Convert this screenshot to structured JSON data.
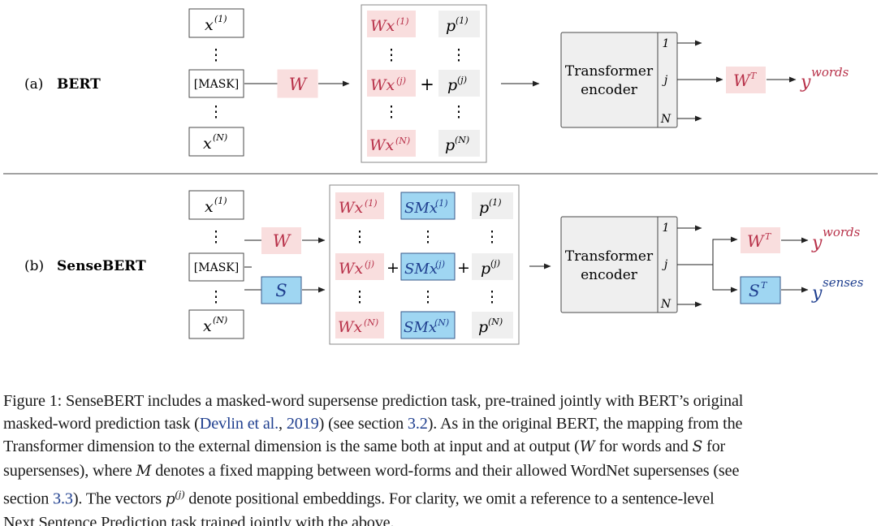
{
  "colors": {
    "word_fill": "#f9dede",
    "word_text": "#b8324a",
    "sense_fill": "#9fd6f2",
    "sense_text": "#1f3f8f",
    "pos_fill": "#efefef",
    "box_stroke": "#4a4a4a",
    "cite": "#1f3f8f"
  },
  "panel_a": {
    "tag": "(a)",
    "name": "BERT",
    "input_first": "x",
    "input_first_sup": "(1)",
    "input_mask": "[MASK]",
    "input_last": "x",
    "input_last_sup": "(N)",
    "W": "W",
    "embed": [
      {
        "word": "Wx",
        "word_sup": "(1)",
        "pos": "p",
        "pos_sup": "(1)"
      },
      {
        "word": "Wx",
        "word_sup": "(j)",
        "pos": "p",
        "pos_sup": "(j)"
      },
      {
        "word": "Wx",
        "word_sup": "(N)",
        "pos": "p",
        "pos_sup": "(N)"
      }
    ],
    "plus": "+",
    "encoder_line1": "Transformer",
    "encoder_line2": "encoder",
    "ports": [
      "1",
      "j",
      "N"
    ],
    "out_matrix": "W",
    "out_matrix_sup": "T",
    "out_label": "y",
    "out_label_sup": "words"
  },
  "panel_b": {
    "tag": "(b)",
    "name": "SenseBERT",
    "input_first": "x",
    "input_first_sup": "(1)",
    "input_mask": "[MASK]",
    "input_last": "x",
    "input_last_sup": "(N)",
    "W": "W",
    "S": "S",
    "embed": [
      {
        "word": "Wx",
        "word_sup": "(1)",
        "sense": "SMx",
        "sense_sup": "(1)",
        "pos": "p",
        "pos_sup": "(1)"
      },
      {
        "word": "Wx",
        "word_sup": "(j)",
        "sense": "SMx",
        "sense_sup": "(j)",
        "pos": "p",
        "pos_sup": "(j)"
      },
      {
        "word": "Wx",
        "word_sup": "(N)",
        "sense": "SMx",
        "sense_sup": "(N)",
        "pos": "p",
        "pos_sup": "(N)"
      }
    ],
    "plus": "+",
    "encoder_line1": "Transformer",
    "encoder_line2": "encoder",
    "ports": [
      "1",
      "j",
      "N"
    ],
    "out_words_matrix": "W",
    "out_words_matrix_sup": "T",
    "out_words_label": "y",
    "out_words_label_sup": "words",
    "out_senses_matrix": "S",
    "out_senses_matrix_sup": "T",
    "out_senses_label": "y",
    "out_senses_label_sup": "senses"
  },
  "caption": {
    "l1": "Figure 1: SenseBERT includes a masked-word supersense prediction task, pre-trained jointly with BERT’s original",
    "l2a": "masked-word prediction task (",
    "l2cite": "Devlin et al.",
    "l2b": ", ",
    "l2year": "2019",
    "l2c": ") (see section ",
    "l2sec": "3.2",
    "l2d": "). As in the original BERT, the mapping from the",
    "l3a": "Transformer dimension to the external dimension is the same both at input and at output (",
    "l3W": "W",
    "l3b": " for words and ",
    "l3S": "S",
    "l3c": " for",
    "l4a": "supersenses), where ",
    "l4M": "M",
    "l4b": " denotes a fixed mapping between word-forms and their allowed WordNet supersenses (see",
    "l5a": "section ",
    "l5sec": "3.3",
    "l5b": "). The vectors ",
    "l5p": "p",
    "l5psup": "(j)",
    "l5c": " denote positional embeddings. For clarity, we omit a reference to a sentence-level",
    "l6": "Next Sentence Prediction task trained jointly with the above."
  }
}
